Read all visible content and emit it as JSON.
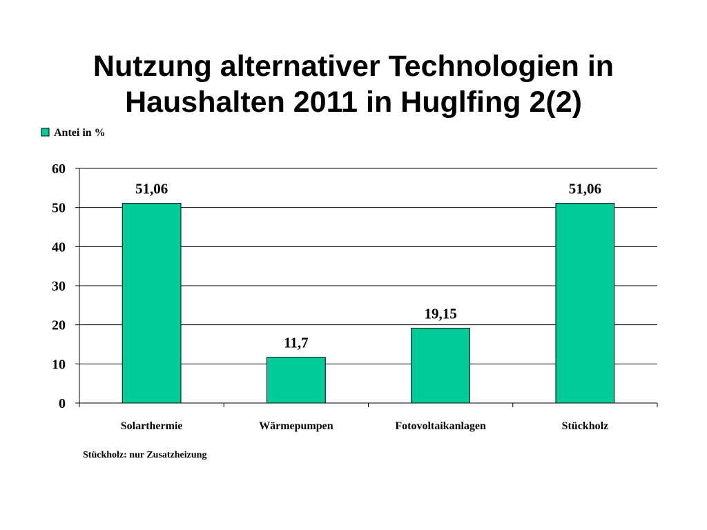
{
  "title_lines": [
    "Nutzung alternativer Technologien in",
    "Haushalten 2011 in Huglfing 2(2)"
  ],
  "footnote": "Stückholz: nur Zusatzheizung",
  "colors": {
    "bar": "#00CC99",
    "grid": "#000000",
    "text": "#000000"
  },
  "chart_data": {
    "type": "bar",
    "categories": [
      "Solarthermie",
      "Wärmepumpen",
      "Fotovoltaikanlagen",
      "Stückholz"
    ],
    "series": [
      {
        "name": "Antei in %",
        "values": [
          51.06,
          11.7,
          19.15,
          51.06
        ],
        "data_labels": [
          "51,06",
          "11,7",
          "19,15",
          "51,06"
        ]
      }
    ],
    "yticks": [
      "0",
      "10",
      "20",
      "30",
      "40",
      "50",
      "60"
    ],
    "ylim": [
      0,
      60
    ],
    "grid": true,
    "legend_position": "top-left"
  }
}
